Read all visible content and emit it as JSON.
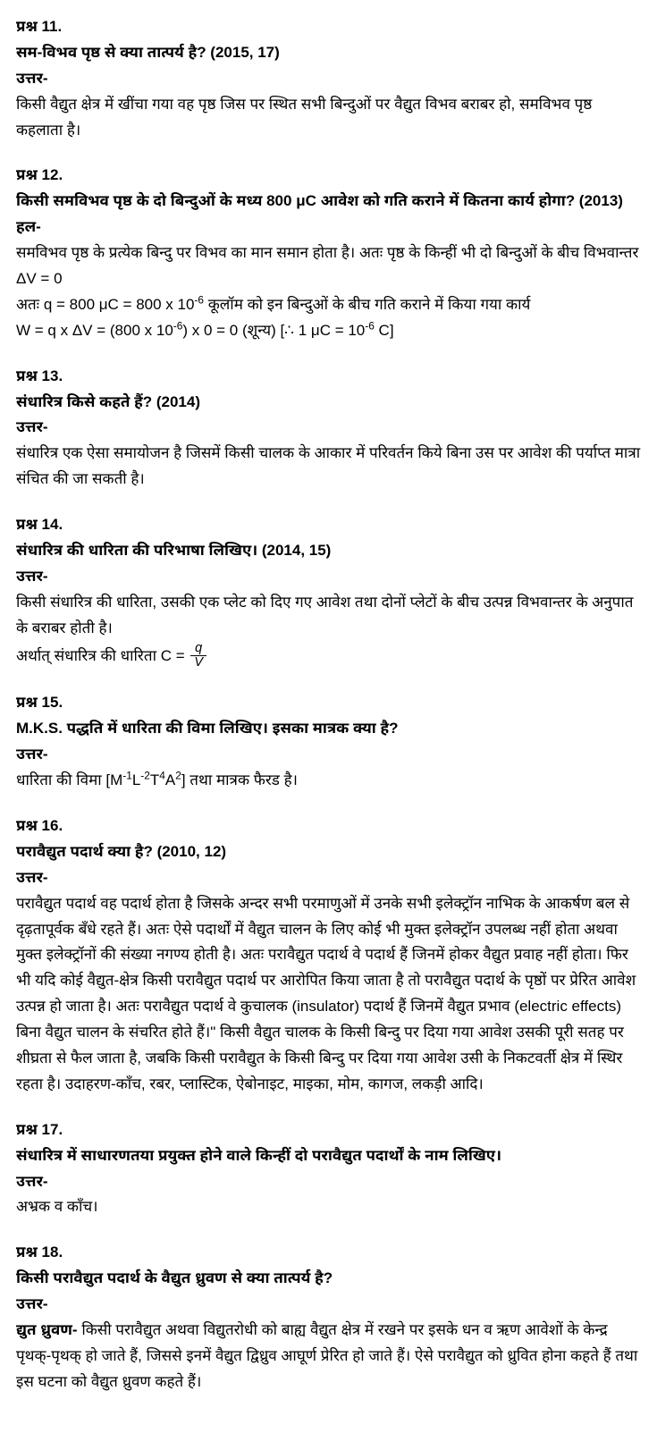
{
  "q11": {
    "label": "प्रश्न 11.",
    "question": "सम-विभव पृष्ठ से क्या तात्पर्य है? (2015, 17)",
    "ans_label": "उत्तर-",
    "answer": "किसी वैद्युत क्षेत्र में खींचा गया वह पृष्ठ जिस पर स्थित सभी बिन्दुओं पर वैद्युत विभव बराबर हो, समविभव पृष्ठ कहलाता है।"
  },
  "q12": {
    "label": "प्रश्न 12.",
    "question": "किसी समविभव पृष्ठ के दो बिन्दुओं के मध्य 800 μC आवेश को गति कराने में कितना कार्य होगा? (2013)",
    "ans_label": "हल-",
    "answer_line1": "समविभव पृष्ठ के प्रत्येक बिन्दु पर विभव का मान समान होता है। अतः पृष्ठ के किन्हीं भी दो बिन्दुओं के बीच विभवान्तर ΔV = 0",
    "answer_line2_a": "अतः q = 800 μC = 800 x 10",
    "answer_line2_b": " कूलॉम को इन बिन्दुओं के बीच गति कराने में किया गया कार्य",
    "answer_line3_a": "W = q x ΔV = (800 x 10",
    "answer_line3_b": ") x 0 = 0 (शून्य) [∴ 1 μC = 10",
    "answer_line3_c": " C]",
    "exp": "-6"
  },
  "q13": {
    "label": "प्रश्न 13.",
    "question": "संधारित्र किसे कहते हैं? (2014)",
    "ans_label": "उत्तर-",
    "answer": "संधारित्र एक ऐसा समायोजन है जिसमें किसी चालक के आकार में परिवर्तन किये बिना उस पर आवेश की पर्याप्त मात्रा संचित की जा सकती है।"
  },
  "q14": {
    "label": "प्रश्न 14.",
    "question": "संधारित्र की धारिता की परिभाषा लिखिए। (2014, 15)",
    "ans_label": "उत्तर-",
    "answer_line1": "किसी संधारित्र की धारिता, उसकी एक प्लेट को दिए गए आवेश तथा दोनों प्लेटों के बीच उत्पन्न विभवान्तर के अनुपात के बराबर होती है।",
    "answer_line2": "अर्थात् संधारित्र की धारिता C = ",
    "frac_num": "q",
    "frac_den": "V"
  },
  "q15": {
    "label": "प्रश्न 15.",
    "question": "M.K.S. पद्धति में धारिता की विमा लिखिए। इसका मात्रक क्या है?",
    "ans_label": "उत्तर-",
    "answer_a": "धारिता की विमा [M",
    "exp1": "-1",
    "answer_b": "L",
    "exp2": "-2",
    "answer_c": "T",
    "exp3": "4",
    "answer_d": "A",
    "exp4": "2",
    "answer_e": "] तथा मात्रक फैरड है।"
  },
  "q16": {
    "label": "प्रश्न 16.",
    "question": "परावैद्युत पदार्थ क्या है? (2010, 12)",
    "ans_label": "उत्तर-",
    "answer": "परावैद्युत पदार्थ वह पदार्थ होता है जिसके अन्दर सभी परमाणुओं में उनके सभी इलेक्ट्रॉन नाभिक के आकर्षण बल से दृढ़तापूर्वक बँधे रहते हैं। अतः ऐसे पदार्थों में वैद्युत चालन के लिए कोई भी मुक्त इलेक्ट्रॉन उपलब्ध नहीं होता अथवा मुक्त इलेक्ट्रॉनों की संख्या नगण्य होती है। अतः परावैद्युत पदार्थ वे पदार्थ हैं जिनमें होकर वैद्युत प्रवाह नहीं होता। फिर भी यदि कोई वैद्युत-क्षेत्र किसी परावैद्युत पदार्थ पर आरोपित किया जाता है तो परावैद्युत पदार्थ के पृष्ठों पर प्रेरित आवेश उत्पन्न हो जाता है। अतः परावैद्युत पदार्थ वे कुचालक (insulator) पदार्थ हैं जिनमें वैद्युत प्रभाव (electric effects) बिना वैद्युत चालन के संचरित होते हैं।\" किसी वैद्युत चालक के किसी बिन्दु पर दिया गया आवेश उसकी पूरी सतह पर शीघ्रता से फैल जाता है, जबकि किसी परावैद्युत के किसी बिन्दु पर दिया गया आवेश उसी के निकटवर्ती क्षेत्र में स्थिर रहता है। उदाहरण-काँच, रबर, प्लास्टिक, ऐबोनाइट, माइका, मोम, कागज, लकड़ी आदि।"
  },
  "q17": {
    "label": "प्रश्न 17.",
    "question": "संधारित्र में साधारणतया प्रयुक्त होने वाले किन्हीं दो परावैद्युत पदार्थों के नाम लिखिए।",
    "ans_label": "उत्तर-",
    "answer": "अभ्रक व काँच।"
  },
  "q18": {
    "label": "प्रश्न 18.",
    "question": "किसी परावैद्युत पदार्थ के वैद्युत ध्रुवण से क्या तात्पर्य है?",
    "ans_label": "उत्तर-",
    "bold_prefix": "द्युत ध्रुवण-",
    "answer": " किसी परावैद्युत अथवा विद्युतरोधी को बाह्य वैद्युत क्षेत्र में रखने पर इसके धन व ऋण आवेशों के केन्द्र पृथक्-पृथक् हो जाते हैं, जिससे इनमें वैद्युत द्विध्रुव आघूर्ण प्रेरित हो जाते हैं। ऐसे परावैद्युत को ध्रुवित होना कहते हैं तथा इस घटना को वैद्युत ध्रुवण कहते हैं।"
  }
}
